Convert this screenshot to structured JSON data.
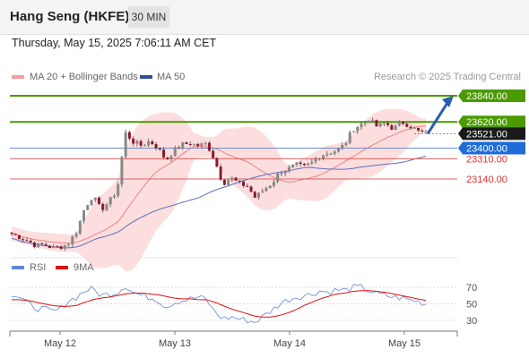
{
  "header": {
    "title": "Hang Seng (HKFE)",
    "timeframe": "30 MIN"
  },
  "timestamp": "Thursday, May 15, 2025 7:06:11 AM CET",
  "legend": {
    "ma20": "MA 20 + Bollinger Bands",
    "ma50": "MA 50"
  },
  "credit": "Research © 2025 Trading Central",
  "colors": {
    "green": "#4a9a00",
    "blue_level": "#6b8fd0",
    "red_level": "#e06060",
    "up": "#888888",
    "down": "#8b1a2a",
    "band": "#fbd6d6",
    "ma20": "#f08080",
    "ma50": "#5a6fc0",
    "arrow": "#2a5db0",
    "rsi": "#5f86d8",
    "ma9": "#e01010"
  },
  "chart_data": [
    {
      "type": "candlestick",
      "title": "Hang Seng (HKFE)",
      "timeframe": "30 MIN",
      "x_labels": [
        "May 12",
        "May 13",
        "May 14",
        "May 15"
      ],
      "series": [
        {
          "name": "MA 20 + Bollinger Bands"
        },
        {
          "name": "MA 50"
        }
      ],
      "levels": [
        {
          "value": 23840,
          "label": "23840.00",
          "style": "green_box"
        },
        {
          "value": 23620,
          "label": "23620.00",
          "style": "green_box"
        },
        {
          "value": 23521,
          "label": "23521.00",
          "style": "current_price"
        },
        {
          "value": 23400,
          "label": "23400.00",
          "style": "blue_box"
        },
        {
          "value": 23310,
          "label": "23310.00",
          "style": "red_text"
        },
        {
          "value": 23140,
          "label": "23140.00",
          "style": "red_text"
        }
      ],
      "close_path": [
        22680,
        22650,
        22620,
        22580,
        22590,
        22560,
        22570,
        22600,
        22700,
        22900,
        23000,
        22880,
        22950,
        23050,
        23530,
        23450,
        23420,
        23460,
        23400,
        23300,
        23380,
        23430,
        23440,
        23420,
        23440,
        23300,
        23100,
        23150,
        23100,
        23080,
        22980,
        23050,
        23100,
        23200,
        23220,
        23260,
        23240,
        23280,
        23340,
        23360,
        23380,
        23430,
        23560,
        23600,
        23640,
        23580,
        23610,
        23560,
        23620,
        23590,
        23540,
        23521
      ],
      "forecast_target": 23840
    },
    {
      "type": "line",
      "title": "RSI",
      "series": [
        {
          "name": "RSI"
        },
        {
          "name": "9MA"
        }
      ],
      "y_ticks": [
        70,
        50,
        30
      ],
      "rsi": [
        62,
        58,
        50,
        45,
        44,
        40,
        44,
        54,
        58,
        66,
        68,
        60,
        62,
        64,
        72,
        64,
        60,
        58,
        55,
        46,
        52,
        54,
        56,
        58,
        55,
        40,
        32,
        34,
        32,
        30,
        28,
        35,
        42,
        50,
        55,
        58,
        60,
        62,
        66,
        64,
        67,
        66,
        70,
        70,
        66,
        62,
        60,
        58,
        57,
        55,
        53,
        50
      ],
      "ma9": [
        55,
        55,
        54,
        52,
        50,
        48,
        47,
        47,
        48,
        52,
        55,
        57,
        58,
        60,
        62,
        63,
        63,
        62,
        61,
        59,
        57,
        56,
        56,
        55,
        55,
        52,
        48,
        44,
        41,
        38,
        35,
        34,
        34,
        36,
        39,
        43,
        48,
        52,
        56,
        59,
        62,
        63,
        65,
        66,
        66,
        65,
        64,
        62,
        60,
        58,
        56,
        54
      ]
    }
  ]
}
